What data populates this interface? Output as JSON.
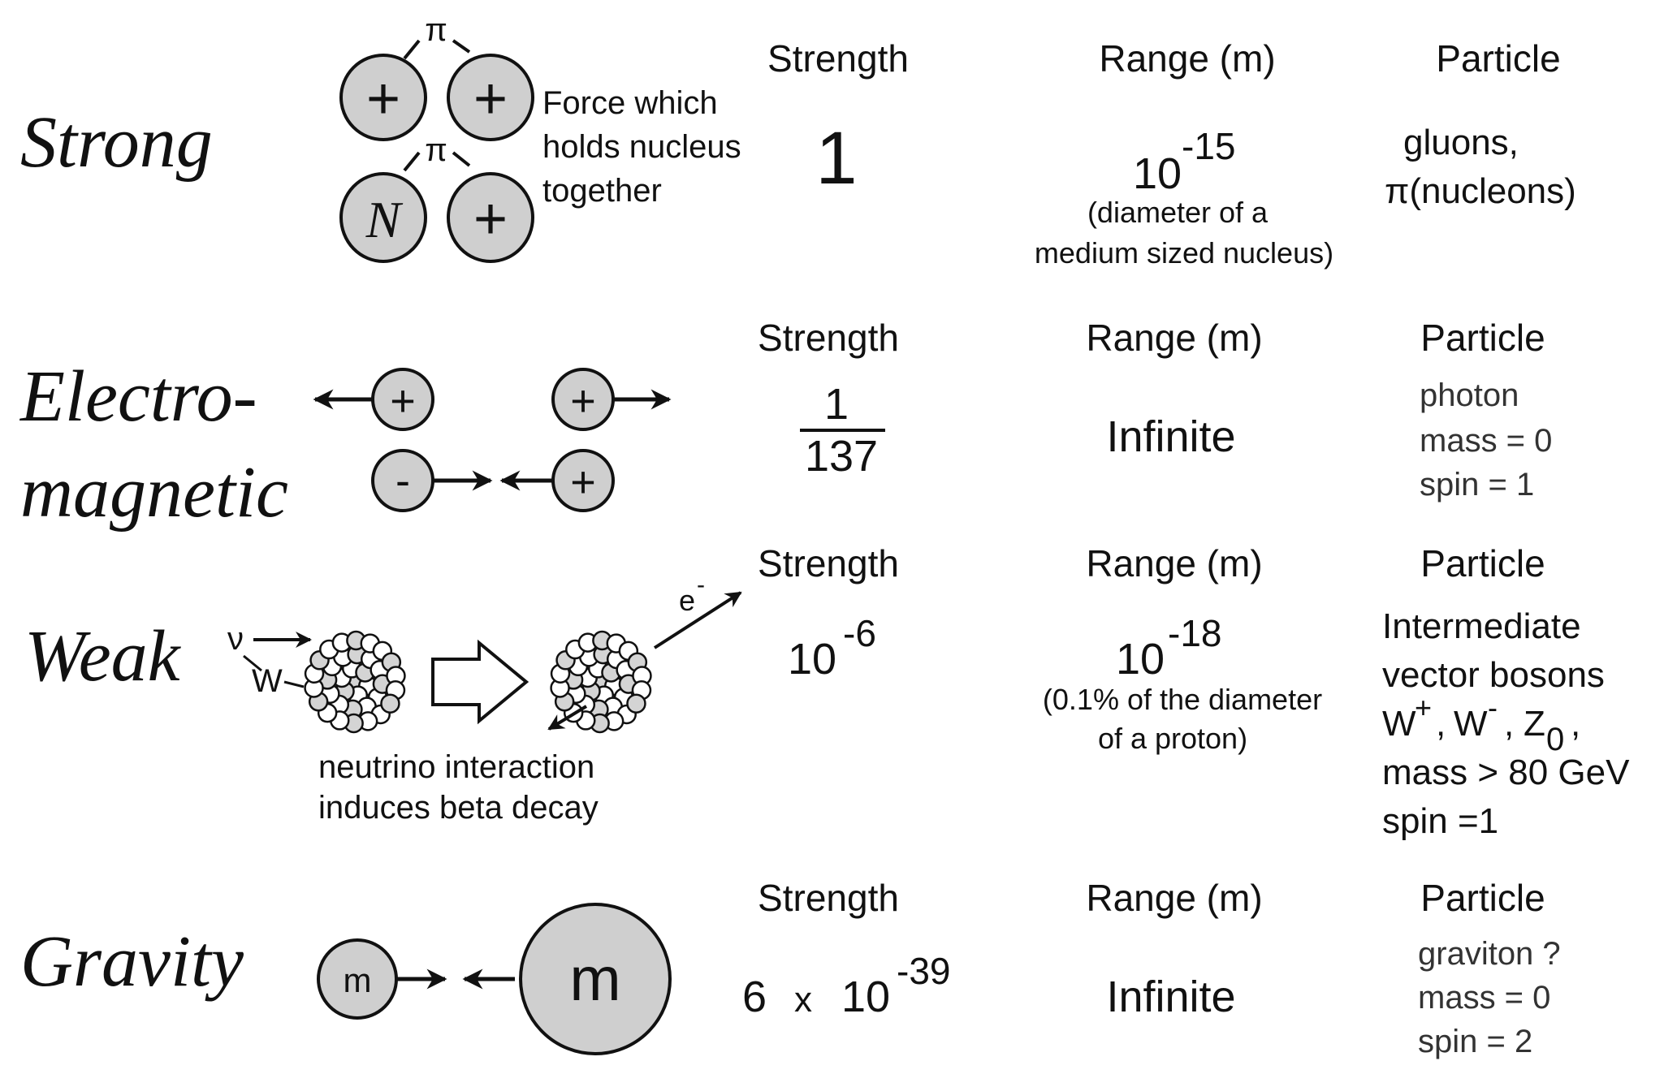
{
  "headers": {
    "strength": "Strength",
    "range": "Range (m)",
    "particle": "Particle"
  },
  "strong": {
    "name": "Strong",
    "pion_label": "π",
    "plus": "+",
    "neutron": "N",
    "description": [
      "Force which",
      "holds nucleus",
      "together"
    ],
    "strength": "1",
    "range_base": "10",
    "range_exp": "-15",
    "range_note": [
      "(diameter of a",
      "medium sized nucleus)"
    ],
    "particle": [
      "gluons,",
      "π(nucleons)"
    ]
  },
  "em": {
    "name_line1": "Electro-",
    "name_line2": "magnetic",
    "plus": "+",
    "minus": "-",
    "strength_num": "1",
    "strength_den": "137",
    "range": "Infinite",
    "particle": [
      "photon",
      "mass = 0",
      "spin = 1"
    ]
  },
  "weak": {
    "name": "Weak",
    "neutrino": "ν",
    "w_label": "W",
    "electron": "e",
    "electron_sup": "-",
    "caption": [
      "neutrino interaction",
      "induces beta decay"
    ],
    "strength_base": "10",
    "strength_exp": "-6",
    "range_base": "10",
    "range_exp": "-18",
    "range_note": [
      "(0.1% of the diameter",
      "of a proton)"
    ],
    "particle": [
      "Intermediate",
      "vector bosons"
    ],
    "bosons": {
      "w": "W",
      "plus": "+",
      "sep": ",",
      "minus": "-",
      "z": "Z",
      "z_sub": "0"
    },
    "particle_tail": [
      "mass > 80 GeV",
      "spin =1"
    ]
  },
  "gravity": {
    "name": "Gravity",
    "mass_small": "m",
    "mass_large": "m",
    "strength_coef": "6",
    "strength_times": "x",
    "strength_base": "10",
    "strength_exp": "-39",
    "range": "Infinite",
    "particle": [
      "graviton ?",
      "mass = 0",
      "spin = 2"
    ]
  },
  "colors": {
    "particle_fill": "#cfcfcf",
    "stroke": "#111111"
  }
}
